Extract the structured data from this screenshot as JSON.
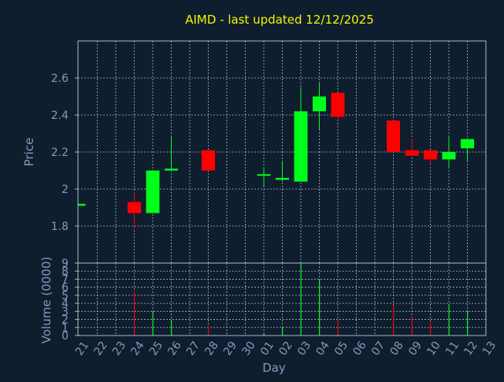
{
  "chart_data": [
    {
      "type": "candlestick",
      "title": "AIMD - last updated 12/12/2025",
      "xlabel": "",
      "ylabel": "Price",
      "ylim": [
        1.6,
        2.8
      ],
      "yticks": [
        1.8,
        2,
        2.2,
        2.4,
        2.6
      ],
      "ytick_labels": [
        "1.8",
        "2",
        "2.2",
        "2.4",
        "2.6"
      ],
      "grid": true,
      "up_color": "#00ff1a",
      "down_color": "#ff0000",
      "categories": [
        "21",
        "22",
        "23",
        "24",
        "25",
        "26",
        "27",
        "28",
        "29",
        "30",
        "01",
        "02",
        "03",
        "04",
        "05",
        "06",
        "07",
        "08",
        "09",
        "10",
        "11",
        "12",
        "13"
      ],
      "candles": [
        {
          "day": "21",
          "open": 1.91,
          "close": 1.92,
          "high": 1.92,
          "low": 1.91
        },
        {
          "day": "24",
          "open": 1.93,
          "close": 1.87,
          "high": 1.98,
          "low": 1.79
        },
        {
          "day": "25",
          "open": 1.87,
          "close": 2.1,
          "high": 2.1,
          "low": 1.87
        },
        {
          "day": "26",
          "open": 2.1,
          "close": 2.11,
          "high": 2.28,
          "low": 2.1
        },
        {
          "day": "28",
          "open": 2.21,
          "close": 2.1,
          "high": 2.21,
          "low": 2.1
        },
        {
          "day": "01",
          "open": 2.08,
          "close": 2.08,
          "high": 2.12,
          "low": 2.01
        },
        {
          "day": "02",
          "open": 2.05,
          "close": 2.06,
          "high": 2.15,
          "low": 2.04
        },
        {
          "day": "03",
          "open": 2.04,
          "close": 2.42,
          "high": 2.55,
          "low": 2.04
        },
        {
          "day": "04",
          "open": 2.42,
          "close": 2.5,
          "high": 2.57,
          "low": 2.32
        },
        {
          "day": "05",
          "open": 2.52,
          "close": 2.39,
          "high": 2.52,
          "low": 2.37
        },
        {
          "day": "08",
          "open": 2.37,
          "close": 2.2,
          "high": 2.37,
          "low": 2.2
        },
        {
          "day": "09",
          "open": 2.21,
          "close": 2.18,
          "high": 2.27,
          "low": 2.18
        },
        {
          "day": "10",
          "open": 2.21,
          "close": 2.16,
          "high": 2.21,
          "low": 2.13
        },
        {
          "day": "11",
          "open": 2.16,
          "close": 2.2,
          "high": 2.29,
          "low": 2.11
        },
        {
          "day": "12",
          "open": 2.22,
          "close": 2.27,
          "high": 2.27,
          "low": 2.15
        }
      ]
    },
    {
      "type": "bar",
      "title": "",
      "xlabel": "Day",
      "ylabel": "Volume (0000)",
      "ylim": [
        0,
        9
      ],
      "yticks": [
        0,
        1,
        2,
        3,
        4,
        5,
        6,
        7,
        8,
        9
      ],
      "ytick_labels": [
        "0",
        "1",
        "2",
        "3",
        "4",
        "5",
        "6",
        "7",
        "8",
        "9"
      ],
      "grid": true,
      "categories": [
        "21",
        "22",
        "23",
        "24",
        "25",
        "26",
        "27",
        "28",
        "29",
        "30",
        "01",
        "02",
        "03",
        "04",
        "05",
        "06",
        "07",
        "08",
        "09",
        "10",
        "11",
        "12",
        "13"
      ],
      "bars": [
        {
          "day": "21",
          "value": 0.1,
          "color": "#00ff1a"
        },
        {
          "day": "24",
          "value": 5.5,
          "color": "#ff0000"
        },
        {
          "day": "25",
          "value": 3.0,
          "color": "#00ff1a"
        },
        {
          "day": "26",
          "value": 1.9,
          "color": "#00ff1a"
        },
        {
          "day": "28",
          "value": 1.2,
          "color": "#ff0000"
        },
        {
          "day": "01",
          "value": 0.3,
          "color": "#00ff1a"
        },
        {
          "day": "02",
          "value": 1.0,
          "color": "#00ff1a"
        },
        {
          "day": "03",
          "value": 9.0,
          "color": "#00ff1a"
        },
        {
          "day": "04",
          "value": 7.0,
          "color": "#00ff1a"
        },
        {
          "day": "05",
          "value": 2.0,
          "color": "#ff0000"
        },
        {
          "day": "08",
          "value": 3.8,
          "color": "#ff0000"
        },
        {
          "day": "09",
          "value": 2.3,
          "color": "#ff0000"
        },
        {
          "day": "10",
          "value": 1.7,
          "color": "#ff0000"
        },
        {
          "day": "11",
          "value": 3.8,
          "color": "#00ff1a"
        },
        {
          "day": "12",
          "value": 3.0,
          "color": "#00ff1a"
        }
      ]
    }
  ]
}
